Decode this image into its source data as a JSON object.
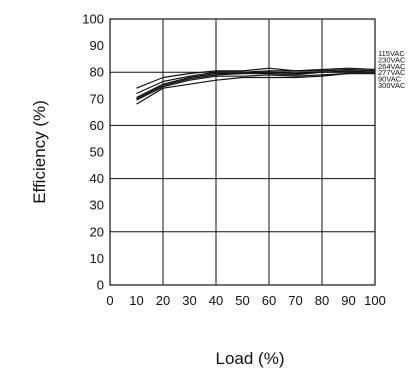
{
  "chart_data": {
    "type": "line",
    "title": "",
    "xlabel": "Load (%)",
    "ylabel": "Efficiency (%)",
    "xlim": [
      0,
      100
    ],
    "ylim": [
      0,
      100
    ],
    "x_ticks": [
      0,
      10,
      20,
      30,
      40,
      50,
      60,
      70,
      80,
      90,
      100
    ],
    "y_ticks": [
      0,
      10,
      20,
      30,
      40,
      50,
      60,
      70,
      80,
      90,
      100
    ],
    "grid": true,
    "legend_position": "right",
    "x": [
      10,
      20,
      30,
      40,
      50,
      60,
      70,
      80,
      90,
      100
    ],
    "series": [
      {
        "name": "115VAC",
        "values": [
          74,
          78,
          79.5,
          80.5,
          80.5,
          81.5,
          80.5,
          81,
          81.5,
          81
        ]
      },
      {
        "name": "230VAC",
        "values": [
          72,
          76.5,
          78.5,
          80,
          80,
          80.5,
          80.5,
          80.5,
          81,
          80.5
        ]
      },
      {
        "name": "264VAC",
        "values": [
          70.5,
          75.5,
          78,
          79.5,
          79.5,
          80,
          79.5,
          80,
          80.5,
          80
        ]
      },
      {
        "name": "277VAC",
        "values": [
          70,
          75,
          77.5,
          79,
          79.5,
          79.5,
          79,
          80,
          80,
          80
        ]
      },
      {
        "name": "90VAC",
        "values": [
          69.5,
          74.5,
          77,
          78.5,
          78.5,
          79,
          78.5,
          79,
          79.5,
          79.5
        ]
      },
      {
        "name": "300VAC",
        "values": [
          68,
          74,
          75.5,
          77,
          78,
          78,
          78,
          78.5,
          79.5,
          79.5
        ]
      }
    ]
  }
}
